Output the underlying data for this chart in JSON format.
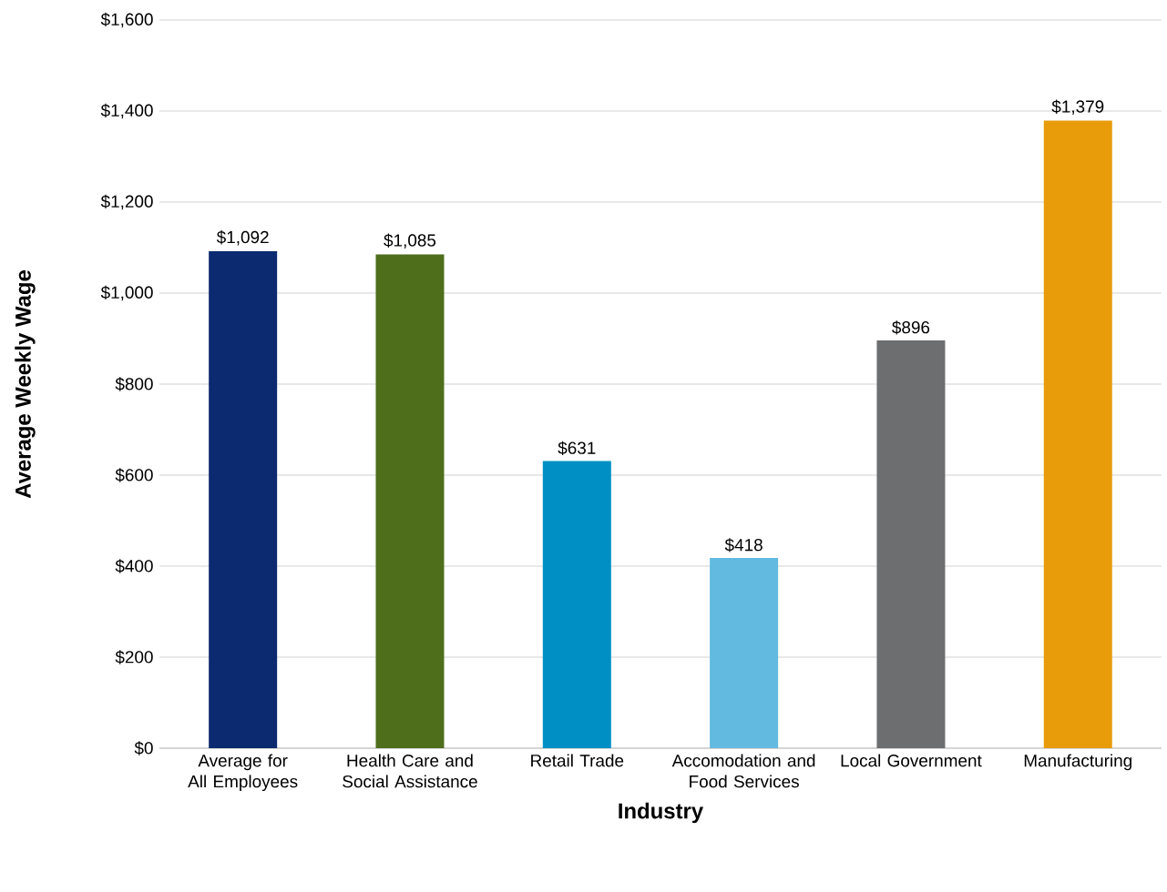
{
  "chart_data": {
    "type": "bar",
    "xlabel": "Industry",
    "ylabel": "Average Weekly Wage",
    "categories": [
      "Average for All Employees",
      "Health Care and Social Assistance",
      "Retail Trade",
      "Accomodation and Food Services",
      "Local Government",
      "Manufacturing"
    ],
    "values": [
      1092,
      1085,
      631,
      418,
      896,
      1379
    ],
    "colors": [
      "#0b2a6f",
      "#4e6e1c",
      "#008fc5",
      "#62bae0",
      "#6d6e70",
      "#e89c0a"
    ],
    "value_labels": [
      "$1,092",
      "$1,085",
      "$631",
      "$418",
      "$896",
      "$1,379"
    ],
    "ylim": [
      0,
      1600
    ],
    "yticks": [
      {
        "value": 0,
        "label": "$0"
      },
      {
        "value": 200,
        "label": "$200"
      },
      {
        "value": 400,
        "label": "$400"
      },
      {
        "value": 600,
        "label": "$600"
      },
      {
        "value": 800,
        "label": "$800"
      },
      {
        "value": 1000,
        "label": "$1,000"
      },
      {
        "value": 1200,
        "label": "$1,200"
      },
      {
        "value": 1400,
        "label": "$1,400"
      },
      {
        "value": 1600,
        "label": "$1,600"
      }
    ],
    "grid": "y"
  }
}
